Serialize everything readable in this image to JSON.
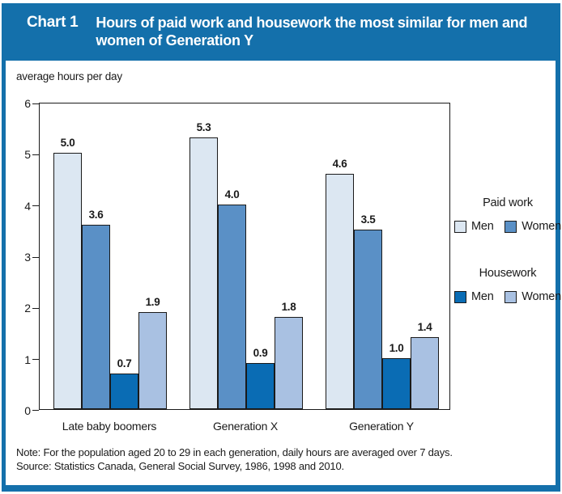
{
  "header": {
    "chart_label": "Chart 1",
    "title": "Hours of paid work and housework the most similar for men and women of Generation Y"
  },
  "y_axis_label": "average hours per day",
  "chart_data": {
    "type": "bar",
    "title": "Hours of paid work and housework the most similar for men and women of Generation Y",
    "categories": [
      "Late baby boomers",
      "Generation X",
      "Generation Y"
    ],
    "series": [
      {
        "group": "Paid work",
        "name": "Men",
        "color": "#dce7f2",
        "values": [
          5.0,
          5.3,
          4.6
        ]
      },
      {
        "group": "Paid work",
        "name": "Women",
        "color": "#5a90c6",
        "values": [
          3.6,
          4.0,
          3.5
        ]
      },
      {
        "group": "Housework",
        "name": "Men",
        "color": "#0a6cb4",
        "values": [
          0.7,
          0.9,
          1.0
        ]
      },
      {
        "group": "Housework",
        "name": "Women",
        "color": "#a9c1e2",
        "values": [
          1.9,
          1.8,
          1.4
        ]
      }
    ],
    "ylabel": "average hours per day",
    "ylim": [
      0,
      6
    ],
    "y_ticks": [
      0,
      1,
      2,
      3,
      4,
      5,
      6
    ],
    "grid": false,
    "value_labels": true,
    "legend_position": "right"
  },
  "legend": {
    "groups": [
      {
        "title": "Paid work",
        "items": [
          {
            "label": "Men",
            "color": "#dce7f2"
          },
          {
            "label": "Women",
            "color": "#5a90c6"
          }
        ]
      },
      {
        "title": "Housework",
        "items": [
          {
            "label": "Men",
            "color": "#0a6cb4"
          },
          {
            "label": "Women",
            "color": "#a9c1e2"
          }
        ]
      }
    ]
  },
  "footer": {
    "note": "Note:  For the population aged 20 to 29 in each generation, daily hours are averaged over 7 days.",
    "source": "Source: Statistics Canada, General Social Survey, 1986, 1998 and 2010."
  },
  "colors": {
    "frame_blue": "#1470ab",
    "bar_border": "#1a1a1a"
  }
}
